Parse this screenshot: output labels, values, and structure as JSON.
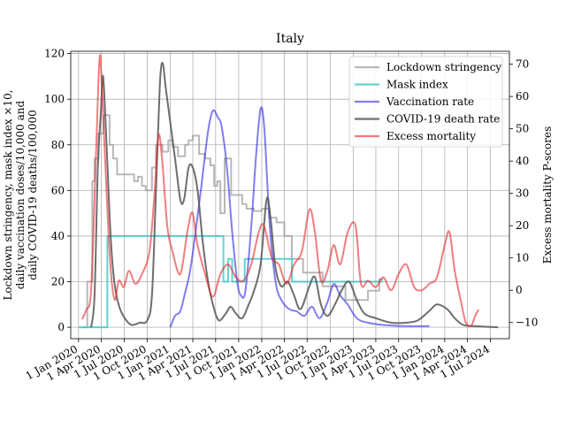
{
  "chart_data": {
    "type": "line",
    "title": "Italy",
    "ylabel_left": [
      "Lockdown stringency, mask index ×10,",
      "daily vaccination doses/10,000 and",
      "daily COVID-19 deaths/100,000"
    ],
    "ylabel_right": "Excess mortality P-scores",
    "xlabel": "",
    "x_ticks": [
      "1 Jan 2020",
      "1 Apr 2020",
      "1 Jul 2020",
      "1 Oct 2020",
      "1 Jan 2021",
      "1 Apr 2021",
      "1 Jul 2021",
      "1 Oct 2021",
      "1 Jan 2022",
      "1 Apr 2022",
      "1 Jul 2022",
      "1 Oct 2022",
      "1 Jan 2023",
      "1 Apr 2023",
      "1 Jul 2023",
      "1 Oct 2023",
      "1 Jan 2024",
      "1 Apr 2024",
      "1 Jul 2024"
    ],
    "xlim": [
      "2019-12-01",
      "2024-09-15"
    ],
    "ylim_left": [
      -5,
      121
    ],
    "ylim_right": [
      -15,
      74
    ],
    "y_ticks_left": [
      0,
      20,
      40,
      60,
      80,
      100,
      120
    ],
    "y_ticks_right": [
      -10,
      0,
      10,
      20,
      30,
      40,
      50,
      60,
      70
    ],
    "grid": true,
    "legend_position": "top-right",
    "series": [
      {
        "name": "Lockdown stringency",
        "axis": "left",
        "step": true,
        "color": "#a0a0a0",
        "width": 2,
        "opacity": 0.75,
        "points": [
          [
            "2020-01-20",
            0
          ],
          [
            "2020-02-05",
            20
          ],
          [
            "2020-02-25",
            64
          ],
          [
            "2020-03-05",
            74
          ],
          [
            "2020-03-20",
            85
          ],
          [
            "2020-04-10",
            93
          ],
          [
            "2020-05-04",
            80
          ],
          [
            "2020-05-18",
            74
          ],
          [
            "2020-06-03",
            67
          ],
          [
            "2020-08-10",
            64
          ],
          [
            "2020-08-25",
            66
          ],
          [
            "2020-09-10",
            62
          ],
          [
            "2020-09-25",
            60
          ],
          [
            "2020-10-20",
            70
          ],
          [
            "2020-11-05",
            80
          ],
          [
            "2020-12-01",
            77
          ],
          [
            "2020-12-24",
            82
          ],
          [
            "2021-01-10",
            79
          ],
          [
            "2021-02-01",
            75
          ],
          [
            "2021-03-01",
            80
          ],
          [
            "2021-03-15",
            82
          ],
          [
            "2021-04-01",
            84
          ],
          [
            "2021-04-26",
            76
          ],
          [
            "2021-05-20",
            74
          ],
          [
            "2021-06-10",
            71
          ],
          [
            "2021-06-25",
            62
          ],
          [
            "2021-07-08",
            64
          ],
          [
            "2021-07-20",
            50
          ],
          [
            "2021-08-06",
            74
          ],
          [
            "2021-09-01",
            58
          ],
          [
            "2021-10-15",
            54
          ],
          [
            "2021-11-01",
            52
          ],
          [
            "2021-12-01",
            51
          ],
          [
            "2022-01-01",
            52
          ],
          [
            "2022-02-01",
            48
          ],
          [
            "2022-03-01",
            46
          ],
          [
            "2022-04-01",
            40
          ],
          [
            "2022-05-01",
            30
          ],
          [
            "2022-06-15",
            24
          ],
          [
            "2022-09-01",
            18
          ],
          [
            "2022-12-01",
            12
          ],
          [
            "2023-03-01",
            16
          ],
          [
            "2023-04-15",
            21
          ],
          [
            "2023-05-01",
            21
          ]
        ]
      },
      {
        "name": "Mask index",
        "axis": "left",
        "step": true,
        "color": "#2ec4c4",
        "width": 2,
        "opacity": 0.75,
        "points": [
          [
            "2020-01-01",
            0
          ],
          [
            "2020-04-25",
            40
          ],
          [
            "2021-08-01",
            20
          ],
          [
            "2021-08-20",
            30
          ],
          [
            "2021-09-05",
            20
          ],
          [
            "2021-10-25",
            30
          ],
          [
            "2022-05-01",
            20
          ],
          [
            "2023-04-30",
            20
          ]
        ]
      },
      {
        "name": "Vaccination rate",
        "axis": "left",
        "step": false,
        "color": "#1a12e6",
        "width": 2,
        "opacity": 0.55,
        "points": [
          [
            "2021-01-01",
            0
          ],
          [
            "2021-01-20",
            5
          ],
          [
            "2021-02-10",
            7
          ],
          [
            "2021-03-01",
            15
          ],
          [
            "2021-03-20",
            24
          ],
          [
            "2021-04-10",
            40
          ],
          [
            "2021-05-05",
            62
          ],
          [
            "2021-06-01",
            86
          ],
          [
            "2021-06-20",
            95
          ],
          [
            "2021-07-10",
            92
          ],
          [
            "2021-07-25",
            88
          ],
          [
            "2021-08-15",
            70
          ],
          [
            "2021-09-05",
            42
          ],
          [
            "2021-09-25",
            20
          ],
          [
            "2021-10-10",
            14
          ],
          [
            "2021-10-28",
            16
          ],
          [
            "2021-11-20",
            44
          ],
          [
            "2021-12-10",
            76
          ],
          [
            "2021-12-28",
            96
          ],
          [
            "2022-01-12",
            86
          ],
          [
            "2022-02-01",
            46
          ],
          [
            "2022-02-25",
            20
          ],
          [
            "2022-03-20",
            12
          ],
          [
            "2022-04-20",
            8
          ],
          [
            "2022-05-20",
            7
          ],
          [
            "2022-06-20",
            5
          ],
          [
            "2022-07-20",
            9
          ],
          [
            "2022-08-20",
            4
          ],
          [
            "2022-09-20",
            11
          ],
          [
            "2022-10-15",
            19
          ],
          [
            "2022-11-10",
            14
          ],
          [
            "2022-12-10",
            10
          ],
          [
            "2023-01-15",
            4
          ],
          [
            "2023-03-01",
            2
          ],
          [
            "2023-05-01",
            1
          ],
          [
            "2023-08-01",
            0.5
          ],
          [
            "2023-11-01",
            0.5
          ]
        ]
      },
      {
        "name": "COVID-19 death rate",
        "axis": "left",
        "step": false,
        "color": "#555555",
        "width": 2,
        "opacity": 0.85,
        "points": [
          [
            "2020-02-20",
            0
          ],
          [
            "2020-03-05",
            14
          ],
          [
            "2020-03-18",
            70
          ],
          [
            "2020-03-30",
            94
          ],
          [
            "2020-04-08",
            110
          ],
          [
            "2020-04-22",
            80
          ],
          [
            "2020-05-08",
            40
          ],
          [
            "2020-05-25",
            18
          ],
          [
            "2020-06-15",
            8
          ],
          [
            "2020-07-10",
            3
          ],
          [
            "2020-08-01",
            1
          ],
          [
            "2020-09-01",
            2
          ],
          [
            "2020-10-01",
            3
          ],
          [
            "2020-10-20",
            14
          ],
          [
            "2020-11-05",
            60
          ],
          [
            "2020-11-20",
            105
          ],
          [
            "2020-12-01",
            116
          ],
          [
            "2020-12-15",
            104
          ],
          [
            "2021-01-01",
            90
          ],
          [
            "2021-01-20",
            74
          ],
          [
            "2021-02-10",
            56
          ],
          [
            "2021-02-25",
            56
          ],
          [
            "2021-03-15",
            70
          ],
          [
            "2021-04-01",
            70
          ],
          [
            "2021-04-20",
            60
          ],
          [
            "2021-05-10",
            38
          ],
          [
            "2021-06-01",
            20
          ],
          [
            "2021-06-25",
            8
          ],
          [
            "2021-07-15",
            3
          ],
          [
            "2021-08-10",
            6
          ],
          [
            "2021-08-30",
            9
          ],
          [
            "2021-09-20",
            6
          ],
          [
            "2021-10-15",
            4
          ],
          [
            "2021-11-10",
            10
          ],
          [
            "2021-12-01",
            16
          ],
          [
            "2021-12-28",
            28
          ],
          [
            "2022-01-20",
            56
          ],
          [
            "2022-02-05",
            48
          ],
          [
            "2022-02-25",
            26
          ],
          [
            "2022-03-20",
            18
          ],
          [
            "2022-04-15",
            20
          ],
          [
            "2022-05-10",
            14
          ],
          [
            "2022-06-05",
            8
          ],
          [
            "2022-07-10",
            18
          ],
          [
            "2022-08-01",
            22
          ],
          [
            "2022-08-25",
            10
          ],
          [
            "2022-09-20",
            5
          ],
          [
            "2022-10-20",
            10
          ],
          [
            "2022-11-15",
            16
          ],
          [
            "2022-12-15",
            20
          ],
          [
            "2023-01-15",
            12
          ],
          [
            "2023-02-15",
            6
          ],
          [
            "2023-04-01",
            4
          ],
          [
            "2023-06-01",
            2
          ],
          [
            "2023-08-01",
            2
          ],
          [
            "2023-09-15",
            3
          ],
          [
            "2023-10-30",
            7
          ],
          [
            "2023-12-01",
            10
          ],
          [
            "2024-01-10",
            8
          ],
          [
            "2024-02-10",
            4
          ],
          [
            "2024-03-15",
            1
          ],
          [
            "2024-05-01",
            0.5
          ],
          [
            "2024-08-01",
            0
          ]
        ]
      },
      {
        "name": "Excess mortality",
        "axis": "right",
        "step": false,
        "color": "#e8262a",
        "width": 2,
        "opacity": 0.6,
        "points": [
          [
            "2020-01-15",
            -9
          ],
          [
            "2020-02-01",
            -6
          ],
          [
            "2020-02-20",
            0
          ],
          [
            "2020-03-10",
            40
          ],
          [
            "2020-03-25",
            72
          ],
          [
            "2020-04-05",
            60
          ],
          [
            "2020-04-25",
            25
          ],
          [
            "2020-05-10",
            5
          ],
          [
            "2020-05-25",
            -3
          ],
          [
            "2020-06-10",
            3
          ],
          [
            "2020-06-30",
            1
          ],
          [
            "2020-07-20",
            6
          ],
          [
            "2020-08-15",
            2
          ],
          [
            "2020-09-10",
            5
          ],
          [
            "2020-10-10",
            12
          ],
          [
            "2020-10-30",
            30
          ],
          [
            "2020-11-15",
            48
          ],
          [
            "2020-11-30",
            40
          ],
          [
            "2020-12-20",
            20
          ],
          [
            "2021-01-10",
            12
          ],
          [
            "2021-02-10",
            5
          ],
          [
            "2021-03-10",
            18
          ],
          [
            "2021-03-30",
            24
          ],
          [
            "2021-04-20",
            14
          ],
          [
            "2021-05-20",
            5
          ],
          [
            "2021-06-20",
            -2
          ],
          [
            "2021-07-20",
            5
          ],
          [
            "2021-08-20",
            8
          ],
          [
            "2021-09-20",
            4
          ],
          [
            "2021-10-20",
            3
          ],
          [
            "2021-11-20",
            8
          ],
          [
            "2021-12-20",
            18
          ],
          [
            "2022-01-10",
            20
          ],
          [
            "2022-02-10",
            10
          ],
          [
            "2022-03-10",
            8
          ],
          [
            "2022-04-10",
            2
          ],
          [
            "2022-05-10",
            8
          ],
          [
            "2022-06-10",
            12
          ],
          [
            "2022-07-10",
            25
          ],
          [
            "2022-08-01",
            18
          ],
          [
            "2022-08-25",
            3
          ],
          [
            "2022-09-20",
            6
          ],
          [
            "2022-10-15",
            14
          ],
          [
            "2022-11-10",
            8
          ],
          [
            "2022-12-10",
            18
          ],
          [
            "2023-01-10",
            20
          ],
          [
            "2023-02-01",
            2
          ],
          [
            "2023-03-01",
            3
          ],
          [
            "2023-04-01",
            1
          ],
          [
            "2023-05-01",
            4
          ],
          [
            "2023-06-01",
            0
          ],
          [
            "2023-07-01",
            5
          ],
          [
            "2023-08-01",
            8
          ],
          [
            "2023-09-01",
            1
          ],
          [
            "2023-10-01",
            0
          ],
          [
            "2023-11-01",
            2
          ],
          [
            "2023-12-01",
            4
          ],
          [
            "2024-01-01",
            14
          ],
          [
            "2024-01-20",
            18
          ],
          [
            "2024-02-10",
            6
          ],
          [
            "2024-03-10",
            -5
          ],
          [
            "2024-03-25",
            -10
          ],
          [
            "2024-04-15",
            -11
          ],
          [
            "2024-05-01",
            -8
          ],
          [
            "2024-05-15",
            -6
          ]
        ]
      }
    ]
  }
}
